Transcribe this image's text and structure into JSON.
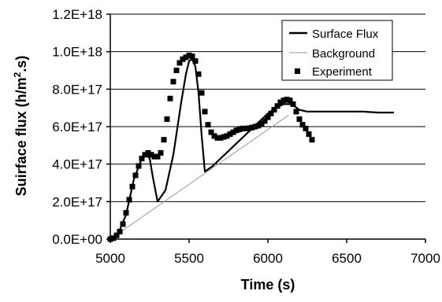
{
  "chart_data": {
    "type": "line",
    "title": "",
    "xlabel": "Time (s)",
    "ylabel": "Suirface flux (h/m².s)",
    "ylabel_parts": {
      "prefix": "Suirface flux (h/m",
      "superscript": "2",
      "suffix": ".s)"
    },
    "xlim": [
      5000,
      7000
    ],
    "ylim": [
      0,
      1.2e+18
    ],
    "x_ticks": [
      5000,
      5500,
      6000,
      6500,
      7000
    ],
    "x_tick_labels": [
      "5000",
      "5500",
      "6000",
      "6500",
      "7000"
    ],
    "y_ticks": [
      0,
      2e+17,
      4e+17,
      6e+17,
      8e+17,
      1e+18,
      1.2e+18
    ],
    "y_tick_labels": [
      "0.0E+00",
      "2.0E+17",
      "4.0E+17",
      "6.0E+17",
      "8.0E+17",
      "1.0E+18",
      "1.2E+18"
    ],
    "grid": {
      "horizontal": true,
      "vertical": false
    },
    "legend_position": "top-right",
    "legend_entries": [
      "Surface Flux",
      "Background",
      "Experiment"
    ],
    "series": [
      {
        "name": "Surface Flux",
        "style": "line",
        "color": "#000000",
        "x": [
          5000,
          5050,
          5100,
          5150,
          5200,
          5230,
          5250,
          5270,
          5300,
          5350,
          5400,
          5450,
          5480,
          5500,
          5520,
          5540,
          5560,
          5580,
          5600,
          5650,
          5700,
          5750,
          5800,
          5850,
          5900,
          5950,
          6000,
          6050,
          6100,
          6150,
          6200,
          6250,
          6300,
          6400,
          6500,
          6600,
          6700,
          6800
        ],
        "y": [
          0,
          3e+16,
          1.3e+17,
          3.2e+17,
          4.3e+17,
          4.5e+17,
          4.3e+17,
          3.3e+17,
          2e+17,
          2.6e+17,
          4.5e+17,
          7.3e+17,
          8.8e+17,
          9.5e+17,
          9.6e+17,
          9.2e+17,
          7.8e+17,
          5.5e+17,
          3.6e+17,
          3.9e+17,
          4.3e+17,
          4.7e+17,
          5.1e+17,
          5.5e+17,
          5.9e+17,
          6.3e+17,
          6.7e+17,
          7e+17,
          7.2e+17,
          7.2e+17,
          6.9e+17,
          6.8e+17,
          6.8e+17,
          6.8e+17,
          6.8e+17,
          6.8e+17,
          6.75e+17,
          6.75e+17
        ]
      },
      {
        "name": "Background",
        "style": "line",
        "color": "#9a9a9a",
        "x": [
          5000,
          6130
        ],
        "y": [
          0,
          6.6e+17
        ]
      },
      {
        "name": "Experiment",
        "style": "marker",
        "color": "#000000",
        "x": [
          5000,
          5020,
          5040,
          5060,
          5080,
          5100,
          5120,
          5140,
          5160,
          5180,
          5200,
          5220,
          5240,
          5260,
          5280,
          5300,
          5320,
          5340,
          5360,
          5380,
          5400,
          5420,
          5440,
          5460,
          5480,
          5500,
          5520,
          5540,
          5560,
          5580,
          5600,
          5620,
          5640,
          5660,
          5680,
          5700,
          5720,
          5740,
          5760,
          5780,
          5800,
          5820,
          5840,
          5860,
          5880,
          5900,
          5920,
          5940,
          5960,
          5980,
          6000,
          6020,
          6040,
          6060,
          6080,
          6100,
          6120,
          6140,
          6160,
          6180,
          6200,
          6220,
          6240,
          6260,
          6280
        ],
        "y": [
          0,
          5000000000000000.0,
          2e+16,
          4e+16,
          8e+16,
          1.4e+17,
          2.1e+17,
          2.8e+17,
          3.4e+17,
          3.9e+17,
          4.3e+17,
          4.5e+17,
          4.6e+17,
          4.5e+17,
          4.4e+17,
          4.4e+17,
          4.6e+17,
          5.3e+17,
          6.4e+17,
          7.5e+17,
          8.4e+17,
          9e+17,
          9.4e+17,
          9.6e+17,
          9.7e+17,
          9.8e+17,
          9.75e+17,
          9.5e+17,
          8.8e+17,
          7.8e+17,
          6.8e+17,
          6.1e+17,
          5.7e+17,
          5.5e+17,
          5.4e+17,
          5.4e+17,
          5.45e+17,
          5.5e+17,
          5.6e+17,
          5.7e+17,
          5.8e+17,
          5.85e+17,
          5.9e+17,
          5.9e+17,
          5.92e+17,
          5.95e+17,
          6e+17,
          6.05e+17,
          6.15e+17,
          6.3e+17,
          6.5e+17,
          6.7e+17,
          6.9e+17,
          7.1e+17,
          7.3e+17,
          7.4e+17,
          7.45e+17,
          7.4e+17,
          7.2e+17,
          6.8e+17,
          6.4e+17,
          6.1e+17,
          5.9e+17,
          5.6e+17,
          5.3e+17
        ]
      }
    ]
  }
}
